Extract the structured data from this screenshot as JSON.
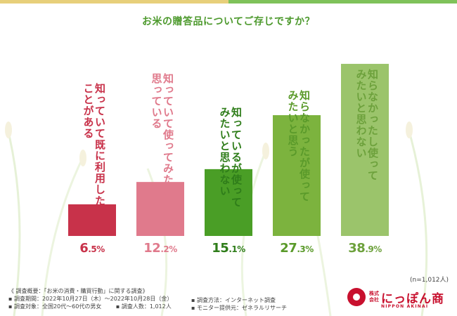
{
  "header": {
    "title": "お米の贈答品についてご存じですか？"
  },
  "chart_data": {
    "type": "bar",
    "title": "お米の贈答品についてご存じですか？",
    "categories": [
      "知っていて既に利用したことがある",
      "知っていて使ってみたいと思っている",
      "知っているが使ってみたいと思わない",
      "知らなかったが使ってみたいと思う",
      "知らなかったし使ってみたいと思わない"
    ],
    "category_lines": [
      [
        "知っていて既に利用した",
        "ことがある"
      ],
      [
        "知っていて使ってみたいと",
        "思っている"
      ],
      [
        "知っているが使って",
        "みたいと思わない"
      ],
      [
        "知らなかったが使って",
        "みたいと思う"
      ],
      [
        "知らなかったし使って",
        "みたいと思わない"
      ]
    ],
    "values": [
      6.5,
      12.2,
      15.1,
      27.3,
      38.9
    ],
    "value_labels": [
      {
        "int": "6",
        "dec": ".5%"
      },
      {
        "int": "12",
        "dec": ".2%"
      },
      {
        "int": "15",
        "dec": ".1%"
      },
      {
        "int": "27",
        "dec": ".3%"
      },
      {
        "int": "38",
        "dec": ".9%"
      }
    ],
    "ylim": [
      0,
      40
    ],
    "colors": [
      "#c8324a",
      "#e07a8c",
      "#4a9e26",
      "#7cb33e",
      "#9bc46b"
    ],
    "label_colors": [
      "#c8324a",
      "#e07a8c",
      "#2f7d1a",
      "#5a9a2a",
      "#6da13c"
    ],
    "sample_note": "(n=1,012人)"
  },
  "footer": {
    "lines_left": [
      "《 調査概要：「お米の消費・購買行動」に関する調査》",
      "▪ 調査期間：2022年10月27日（木）～2022年10月28日（金）",
      "▪ 調査対象：全国20代～60代の男女"
    ],
    "count": "▪ 調査人数：1,012人",
    "method": "▪ 調査方法：インターネット調査",
    "provider": "▪ モニター提供元：ゼネラルリサーチ"
  },
  "logo": {
    "corp": "株式会社",
    "name": "にっぽん商",
    "roman": "NIPPON AKINAI"
  }
}
